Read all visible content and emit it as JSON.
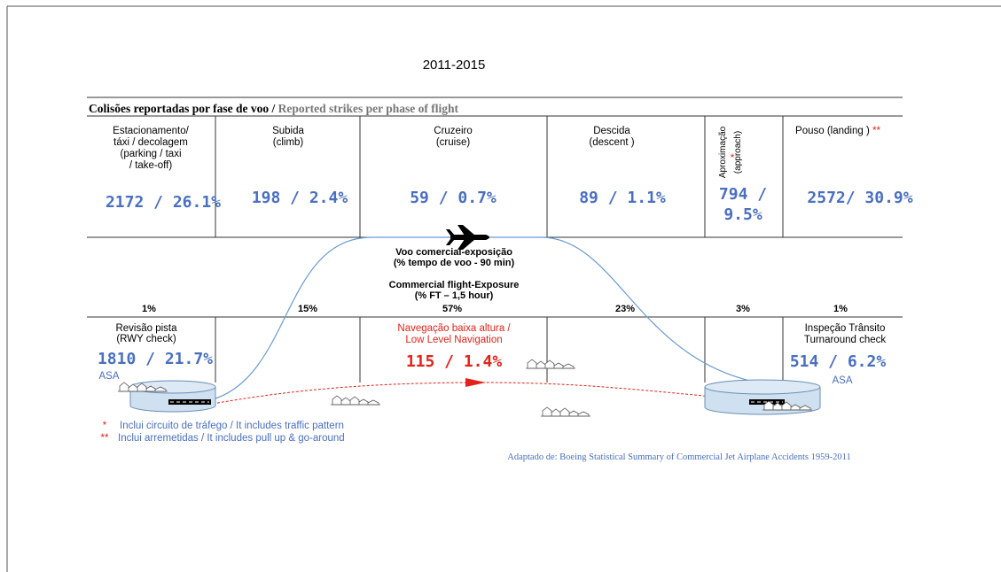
{
  "year": "2011-2015",
  "table": {
    "title_pt": "Colisões reportadas por fase de voo /",
    "title_en": "Reported strikes per phase of flight",
    "phases": [
      {
        "label": [
          "Estacionamento/",
          "táxi / decolagem",
          "(parking / taxi",
          "/ take-off)"
        ],
        "value": "2172 / 26.1%"
      },
      {
        "label": [
          "Subida",
          "(climb)"
        ],
        "value": "198 / 2.4%"
      },
      {
        "label": [
          "Cruzeiro",
          "(cruise)"
        ],
        "value": "59 / 0.7%"
      },
      {
        "label": [
          "Descida",
          "(descent )"
        ],
        "value": "89 / 1.1%"
      },
      {
        "label": [
          "Aproximação",
          "(approach)"
        ],
        "mark": "*",
        "value": [
          "794 /",
          "9.5%"
        ]
      },
      {
        "label": [
          "Pouso (landing )"
        ],
        "mark": "**",
        "value": "2572/ 30.9%"
      }
    ],
    "exposure": [
      "1%",
      "15%",
      "57%",
      "23%",
      "3%",
      "1%"
    ],
    "exposure_title": [
      "Voo comercial-exposição",
      "(% tempo de voo - 90 min)",
      "Commercial flight-Exposure",
      "(% FT – 1,5 hour)"
    ],
    "ground": [
      {
        "label": [
          "Revisão pista",
          "(RWY check)"
        ],
        "value": "1810 / 21.7%",
        "area": "ASA"
      },
      {
        "label": [
          "Navegação baixa altura /",
          "Low Level Navigation"
        ],
        "value": "115 / 1.4%"
      },
      {
        "label": [
          "Inspeção Trânsito",
          "Turnaround check"
        ],
        "value": "514 / 6.2%",
        "area": "ASA"
      }
    ]
  },
  "notes": [
    {
      "mark": "*",
      "text": "Inclui circuito de tráfego / It includes traffic pattern"
    },
    {
      "mark": "**",
      "text": "Inclui arremetidas / It includes pull up & go-around"
    }
  ],
  "source": "Adaptado de: Boeing Statistical Summary of Commercial Jet Airplane Accidents 1959-2011"
}
